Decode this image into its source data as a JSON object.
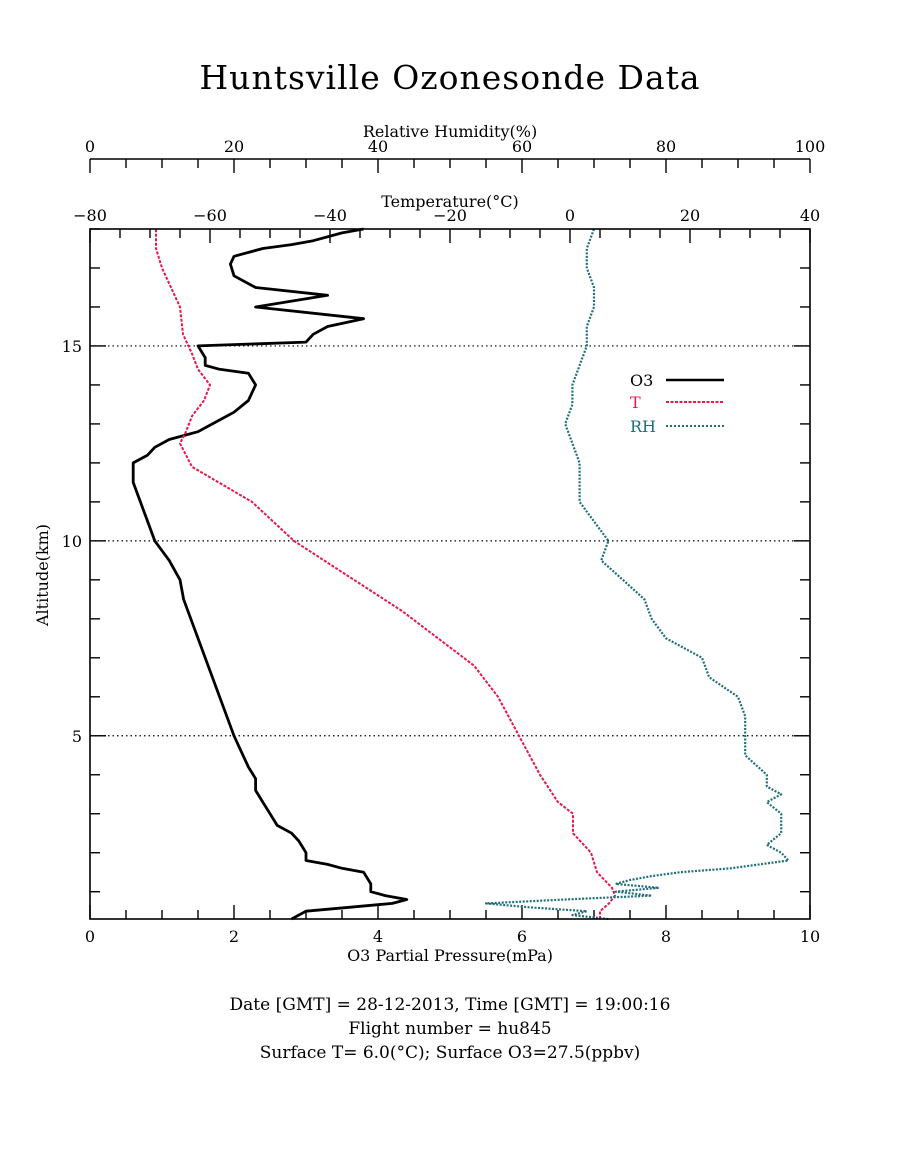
{
  "title": "Huntsville Ozonesonde Data",
  "footer": {
    "line1": "Date [GMT] = 28-12-2013,  Time [GMT] = 19:00:16",
    "line2": "Flight number = hu845",
    "line3": "Surface T= 6.0(°C); Surface O3=27.5(ppbv)"
  },
  "colors": {
    "o3": "#000000",
    "t": "#e8184a",
    "rh": "#1f6f7a"
  },
  "chart_data": {
    "type": "line",
    "xlabel": "O3 Partial Pressure(mPa)",
    "xlabel_top_rh": "Relative Humidity(%)",
    "xlabel_top_t": "Temperature(°C)",
    "ylabel": "Altitude(km)",
    "xlim_o3": [
      0,
      10
    ],
    "xlim_rh": [
      0,
      100
    ],
    "xlim_t": [
      -80,
      40
    ],
    "ylim": [
      0.3,
      18
    ],
    "x_ticks_o3": [
      "0",
      "2",
      "4",
      "6",
      "8",
      "10"
    ],
    "x_ticks_rh": [
      "0",
      "20",
      "40",
      "60",
      "80",
      "100"
    ],
    "x_ticks_t": [
      "−80",
      "−60",
      "−40",
      "−20",
      "0",
      "20",
      "40"
    ],
    "y_ticks": [
      "5",
      "10",
      "15"
    ],
    "grid": "dotted horizontal lines at 5, 10, 15 km",
    "legend_position": "upper-right",
    "series": [
      {
        "name": "O3",
        "axis": "bottom",
        "unit": "mPa",
        "points": [
          [
            2.8,
            0.3
          ],
          [
            3.0,
            0.5
          ],
          [
            3.6,
            0.6
          ],
          [
            4.2,
            0.7
          ],
          [
            4.4,
            0.8
          ],
          [
            4.1,
            0.9
          ],
          [
            3.9,
            1.0
          ],
          [
            3.9,
            1.2
          ],
          [
            3.8,
            1.5
          ],
          [
            3.5,
            1.6
          ],
          [
            3.3,
            1.7
          ],
          [
            3.0,
            1.8
          ],
          [
            3.0,
            2.0
          ],
          [
            2.9,
            2.3
          ],
          [
            2.8,
            2.5
          ],
          [
            2.6,
            2.7
          ],
          [
            2.5,
            3.0
          ],
          [
            2.4,
            3.3
          ],
          [
            2.3,
            3.6
          ],
          [
            2.3,
            3.9
          ],
          [
            2.2,
            4.2
          ],
          [
            2.1,
            4.6
          ],
          [
            2.0,
            5.0
          ],
          [
            1.9,
            5.5
          ],
          [
            1.8,
            6.0
          ],
          [
            1.7,
            6.5
          ],
          [
            1.6,
            7.0
          ],
          [
            1.5,
            7.5
          ],
          [
            1.4,
            8.0
          ],
          [
            1.3,
            8.5
          ],
          [
            1.25,
            9.0
          ],
          [
            1.1,
            9.5
          ],
          [
            0.9,
            10.0
          ],
          [
            0.8,
            10.5
          ],
          [
            0.7,
            11.0
          ],
          [
            0.6,
            11.5
          ],
          [
            0.6,
            12.0
          ],
          [
            0.8,
            12.2
          ],
          [
            0.9,
            12.4
          ],
          [
            1.1,
            12.6
          ],
          [
            1.5,
            12.8
          ],
          [
            1.7,
            13.0
          ],
          [
            2.0,
            13.3
          ],
          [
            2.2,
            13.6
          ],
          [
            2.3,
            14.0
          ],
          [
            2.2,
            14.3
          ],
          [
            1.8,
            14.4
          ],
          [
            1.6,
            14.5
          ],
          [
            1.6,
            14.7
          ],
          [
            1.5,
            15.0
          ],
          [
            3.0,
            15.1
          ],
          [
            3.1,
            15.3
          ],
          [
            3.3,
            15.5
          ],
          [
            3.8,
            15.7
          ],
          [
            2.3,
            16.0
          ],
          [
            3.3,
            16.3
          ],
          [
            2.3,
            16.5
          ],
          [
            2.0,
            16.8
          ],
          [
            1.95,
            17.1
          ],
          [
            2.0,
            17.3
          ],
          [
            2.4,
            17.5
          ],
          [
            2.8,
            17.6
          ],
          [
            3.1,
            17.7
          ],
          [
            3.5,
            17.9
          ],
          [
            3.8,
            18.0
          ]
        ]
      },
      {
        "name": "T",
        "axis": "top-temperature",
        "unit": "°C",
        "points": [
          [
            5.0,
            0.3
          ],
          [
            5.0,
            0.5
          ],
          [
            6.5,
            0.7
          ],
          [
            7.5,
            0.9
          ],
          [
            7.0,
            1.1
          ],
          [
            4.5,
            1.5
          ],
          [
            3.5,
            2.0
          ],
          [
            0.5,
            2.5
          ],
          [
            0.5,
            3.0
          ],
          [
            -2.0,
            3.3
          ],
          [
            -5.0,
            4.0
          ],
          [
            -8.5,
            5.0
          ],
          [
            -12.0,
            6.0
          ],
          [
            -16.0,
            6.8
          ],
          [
            -22.0,
            7.5
          ],
          [
            -28.0,
            8.2
          ],
          [
            -34.0,
            8.8
          ],
          [
            -40.0,
            9.4
          ],
          [
            -46.0,
            10.0
          ],
          [
            -53.0,
            11.0
          ],
          [
            -63.0,
            11.9
          ],
          [
            -65.0,
            12.5
          ],
          [
            -64.0,
            12.8
          ],
          [
            -63.0,
            13.2
          ],
          [
            -61.0,
            13.6
          ],
          [
            -60.0,
            14.0
          ],
          [
            -62.0,
            14.4
          ],
          [
            -63.0,
            14.8
          ],
          [
            -64.5,
            15.3
          ],
          [
            -65.0,
            16.0
          ],
          [
            -66.5,
            16.5
          ],
          [
            -68.0,
            17.0
          ],
          [
            -69.0,
            17.5
          ],
          [
            -69.0,
            18.0
          ]
        ]
      },
      {
        "name": "RH",
        "axis": "top-rh",
        "unit": "%",
        "points": [
          [
            72,
            0.3
          ],
          [
            67,
            0.4
          ],
          [
            69,
            0.5
          ],
          [
            61,
            0.6
          ],
          [
            55,
            0.7
          ],
          [
            66,
            0.8
          ],
          [
            78,
            0.9
          ],
          [
            73,
            1.0
          ],
          [
            79,
            1.1
          ],
          [
            73,
            1.2
          ],
          [
            75,
            1.3
          ],
          [
            78,
            1.4
          ],
          [
            82,
            1.5
          ],
          [
            89,
            1.6
          ],
          [
            97,
            1.8
          ],
          [
            96,
            2.0
          ],
          [
            94,
            2.2
          ],
          [
            96,
            2.5
          ],
          [
            96,
            3.0
          ],
          [
            94,
            3.3
          ],
          [
            96,
            3.5
          ],
          [
            94,
            3.7
          ],
          [
            94,
            4.0
          ],
          [
            91,
            4.5
          ],
          [
            91,
            5.0
          ],
          [
            91,
            5.5
          ],
          [
            90,
            6.0
          ],
          [
            86,
            6.5
          ],
          [
            85,
            7.0
          ],
          [
            80,
            7.5
          ],
          [
            78,
            8.0
          ],
          [
            77,
            8.5
          ],
          [
            74,
            9.0
          ],
          [
            71,
            9.5
          ],
          [
            72,
            10.0
          ],
          [
            70,
            10.5
          ],
          [
            68,
            11.0
          ],
          [
            68,
            11.5
          ],
          [
            68,
            12.0
          ],
          [
            67,
            12.5
          ],
          [
            66,
            13.0
          ],
          [
            67,
            13.5
          ],
          [
            67,
            14.0
          ],
          [
            68,
            14.5
          ],
          [
            69,
            15.0
          ],
          [
            69,
            15.5
          ],
          [
            70,
            16.0
          ],
          [
            70,
            16.5
          ],
          [
            69,
            17.0
          ],
          [
            69,
            17.5
          ],
          [
            70,
            18.0
          ]
        ]
      }
    ]
  }
}
